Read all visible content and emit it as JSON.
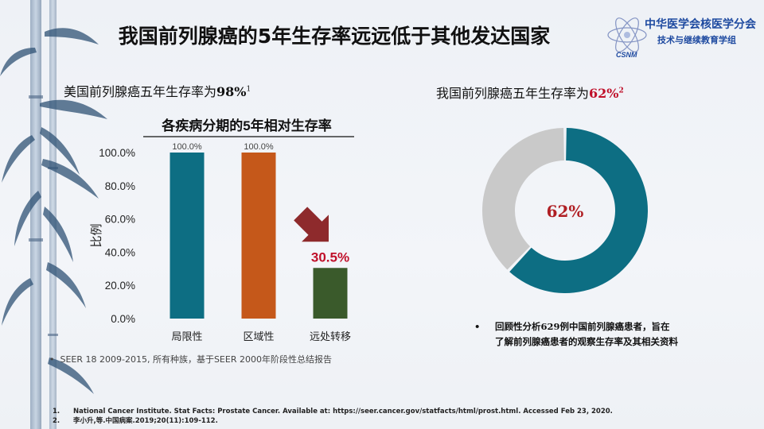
{
  "title": "我国前列腺癌的5年生存率远远低于其他发达国家",
  "logo": {
    "org": "中华医学会核医学分会",
    "sub": "技术与继续教育学组",
    "mark": "CSNM",
    "icon": "atom-logo-icon"
  },
  "left": {
    "heading_pre": "美国前列腺癌五年生存率为",
    "heading_value": "98%",
    "heading_ref": "1",
    "bullet": "SEER 18 2009-2015, 所有种族，基于SEER 2000年阶段性总结报告"
  },
  "right": {
    "heading_pre": "我国前列腺癌五年生存率为",
    "heading_value": "62%",
    "heading_ref": "2",
    "bullet": "回顾性分析629例中国前列腺癌患者，旨在了解前列腺癌患者的观察生存率及其相关资料"
  },
  "chart_data": [
    {
      "type": "bar",
      "title": "各疾病分期的5年相对生存率",
      "ylabel": "比例",
      "categories": [
        "局限性",
        "区域性",
        "远处转移"
      ],
      "values": [
        100.0,
        100.0,
        30.5
      ],
      "data_labels": [
        "100.0%",
        "100.0%",
        "30.5%"
      ],
      "colors": [
        "#0d6e83",
        "#c5581a",
        "#3a5a2b"
      ],
      "ylim": [
        0,
        100
      ],
      "yticks": [
        0,
        20,
        40,
        60,
        80,
        100
      ],
      "ytick_labels": [
        "0.0%",
        "20.0%",
        "40.0%",
        "60.0%",
        "80.0%",
        "100.0%"
      ],
      "highlight_label_color": "#c0102a",
      "arrow_color": "#8e2a2c",
      "grid": false
    },
    {
      "type": "pie",
      "values": [
        62,
        38
      ],
      "colors": [
        "#0d6e83",
        "#c9c9c9"
      ],
      "center_label": "62%",
      "center_label_color": "#b01f24"
    }
  ],
  "footnotes": [
    {
      "num": "1.",
      "text": "National Cancer Institute. Stat Facts: Prostate Cancer. Available at: https://seer.cancer.gov/statfacts/html/prost.html. Accessed Feb 23, 2020."
    },
    {
      "num": "2.",
      "text": "李小升,等.中国病案.2019;20(11):109-112."
    }
  ]
}
